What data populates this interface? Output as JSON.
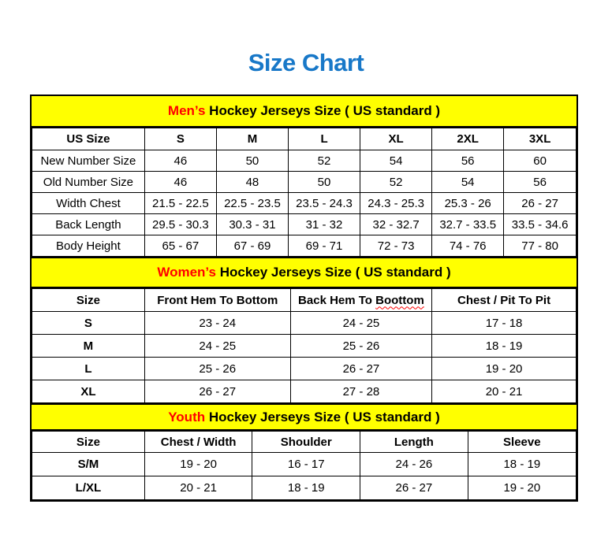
{
  "page": {
    "title": "Size Chart"
  },
  "colors": {
    "title_blue": "#1878C8",
    "accent_red": "#FF0000",
    "band_yellow": "#FFFF00",
    "border_black": "#000000"
  },
  "tables": [
    {
      "id": "mens",
      "band": {
        "accent": "Men’s",
        "rest": " Hockey Jerseys Size ( US standard )"
      },
      "col_widths": [
        "20.7%",
        "13.2%",
        "13.2%",
        "13.2%",
        "13.2%",
        "13.2%",
        "13.3%"
      ],
      "headers": [
        "US Size",
        "S",
        "M",
        "L",
        "XL",
        "2XL",
        "3XL"
      ],
      "label_bold": false,
      "rows": [
        {
          "label": "New Number Size",
          "values": [
            "46",
            "50",
            "52",
            "54",
            "56",
            "60"
          ]
        },
        {
          "label": "Old Number Size",
          "values": [
            "46",
            "48",
            "50",
            "52",
            "54",
            "56"
          ]
        },
        {
          "label": "Width Chest",
          "values": [
            "21.5 - 22.5",
            "22.5 - 23.5",
            "23.5 - 24.3",
            "24.3 - 25.3",
            "25.3 - 26",
            "26 - 27"
          ]
        },
        {
          "label": "Back Length",
          "values": [
            "29.5 - 30.3",
            "30.3 - 31",
            "31 - 32",
            "32 - 32.7",
            "32.7 - 33.5",
            "33.5 - 34.6"
          ]
        },
        {
          "label": "Body Height",
          "values": [
            "65 - 67",
            "67 - 69",
            "69 - 71",
            "72 - 73",
            "74 - 76",
            "77 - 80"
          ]
        }
      ]
    },
    {
      "id": "womens",
      "band": {
        "accent": "Women’s",
        "rest": " Hockey Jerseys Size ( US standard )"
      },
      "col_widths": [
        "20.7%",
        "26.8%",
        "26.0%",
        "26.5%"
      ],
      "headers": [
        "Size",
        "Front Hem To Bottom",
        {
          "text": "Back Hem To Boottom",
          "wavy": "Boottom"
        },
        "Chest / Pit To Pit"
      ],
      "label_bold": true,
      "rows": [
        {
          "label": "S",
          "values": [
            "23 - 24",
            "24 - 25",
            "17 - 18"
          ]
        },
        {
          "label": "M",
          "values": [
            "24 - 25",
            "25 - 26",
            "18 - 19"
          ]
        },
        {
          "label": "L",
          "values": [
            "25 - 26",
            "26 - 27",
            "19 - 20"
          ]
        },
        {
          "label": "XL",
          "values": [
            "26 - 27",
            "27 - 28",
            "20 - 21"
          ]
        }
      ]
    },
    {
      "id": "youth",
      "band": {
        "accent": "Youth",
        "rest": " Hockey Jerseys Size ( US standard )"
      },
      "col_widths": [
        "20.7%",
        "19.8%",
        "19.8%",
        "19.8%",
        "19.9%"
      ],
      "headers": [
        "Size",
        "Chest / Width",
        "Shoulder",
        "Length",
        "Sleeve"
      ],
      "label_bold": true,
      "rows": [
        {
          "label": "S/M",
          "values": [
            "19 - 20",
            "16 - 17",
            "24 - 26",
            "18 - 19"
          ]
        },
        {
          "label": "L/XL",
          "values": [
            "20 - 21",
            "18 - 19",
            "26 - 27",
            "19 - 20"
          ]
        }
      ]
    }
  ]
}
